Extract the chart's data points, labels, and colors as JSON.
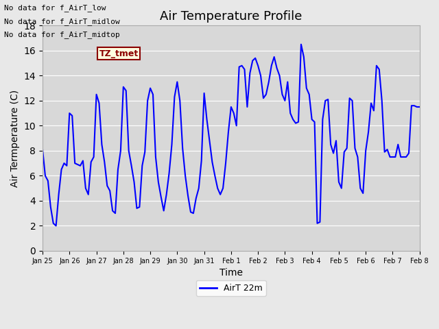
{
  "title": "Air Temperature Profile",
  "xlabel": "Time",
  "ylabel": "Air Termperature (C)",
  "ylim": [
    0,
    18
  ],
  "yticks": [
    0,
    2,
    4,
    6,
    8,
    10,
    12,
    14,
    16,
    18
  ],
  "line_color": "blue",
  "line_width": 1.5,
  "legend_label": "AirT 22m",
  "background_color": "#e8e8e8",
  "plot_bg_color": "#d8d8d8",
  "annotations": [
    "No data for f_AirT_low",
    "No data for f_AirT_midlow",
    "No data for f_AirT_midtop"
  ],
  "annotation_box_label": "TZ_tmet",
  "xtick_labels": [
    "Jan 25",
    "Jan 26",
    "Jan 27",
    "Jan 28",
    "Jan 29",
    "Jan 30",
    "Jan 31",
    "Feb 1",
    "Feb 2",
    "Feb 3",
    "Feb 4",
    "Feb 5",
    "Feb 6",
    "Feb 7",
    "Feb 8"
  ],
  "time_values": [
    0,
    0.1,
    0.2,
    0.3,
    0.4,
    0.5,
    0.6,
    0.7,
    0.8,
    0.9,
    1.0,
    1.1,
    1.2,
    1.3,
    1.4,
    1.5,
    1.6,
    1.7,
    1.8,
    1.9,
    2.0,
    2.1,
    2.2,
    2.3,
    2.4,
    2.5,
    2.6,
    2.7,
    2.8,
    2.9,
    3.0,
    3.1,
    3.2,
    3.3,
    3.4,
    3.5,
    3.6,
    3.7,
    3.8,
    3.9,
    4.0,
    4.1,
    4.2,
    4.3,
    4.4,
    4.5,
    4.6,
    4.7,
    4.8,
    4.9,
    5.0,
    5.1,
    5.2,
    5.3,
    5.4,
    5.5,
    5.6,
    5.7,
    5.8,
    5.9,
    6.0,
    6.1,
    6.2,
    6.3,
    6.4,
    6.5,
    6.6,
    6.7,
    6.8,
    6.9,
    7.0,
    7.1,
    7.2,
    7.3,
    7.4,
    7.5,
    7.6,
    7.7,
    7.8,
    7.9,
    8.0,
    8.1,
    8.2,
    8.3,
    8.4,
    8.5,
    8.6,
    8.7,
    8.8,
    8.9,
    9.0,
    9.1,
    9.2,
    9.3,
    9.4,
    9.5,
    9.6,
    9.7,
    9.8,
    9.9,
    10.0,
    10.1,
    10.2,
    10.3,
    10.4,
    10.5,
    10.6,
    10.7,
    10.8,
    10.9,
    11.0,
    11.1,
    11.2,
    11.3,
    11.4,
    11.5,
    11.6,
    11.7,
    11.8,
    11.9,
    12.0,
    12.1,
    12.2,
    12.3,
    12.4,
    12.5,
    12.6,
    12.7,
    12.8,
    12.9,
    13.0,
    13.1,
    13.2,
    13.3,
    13.4,
    13.5,
    13.6,
    13.7,
    13.8,
    13.9,
    14.0
  ],
  "temp_values": [
    8.1,
    6.0,
    5.6,
    3.5,
    2.2,
    2.0,
    4.5,
    6.5,
    7.0,
    6.8,
    11.0,
    10.8,
    7.0,
    6.9,
    6.8,
    7.2,
    5.0,
    4.5,
    7.1,
    7.5,
    12.5,
    11.8,
    8.5,
    7.1,
    5.2,
    4.8,
    3.2,
    3.0,
    6.5,
    8.0,
    13.1,
    12.8,
    8.0,
    6.8,
    5.5,
    3.4,
    3.5,
    6.8,
    7.9,
    12.0,
    13.0,
    12.5,
    7.5,
    5.5,
    4.3,
    3.2,
    4.5,
    6.2,
    8.5,
    12.3,
    13.5,
    12.0,
    8.2,
    6.0,
    4.4,
    3.1,
    3.0,
    4.2,
    5.0,
    7.2,
    12.6,
    10.5,
    8.8,
    7.1,
    6.0,
    5.0,
    4.5,
    5.0,
    7.0,
    9.5,
    11.5,
    11.0,
    10.0,
    14.7,
    14.8,
    14.5,
    11.5,
    14.2,
    15.2,
    15.4,
    14.8,
    14.0,
    12.2,
    12.5,
    13.5,
    14.8,
    15.5,
    14.6,
    14.0,
    12.5,
    12.0,
    13.5,
    11.0,
    10.5,
    10.2,
    10.3,
    16.5,
    15.5,
    13.0,
    12.5,
    10.5,
    10.3,
    2.2,
    2.3,
    10.5,
    12.0,
    12.1,
    8.5,
    7.8,
    8.8,
    5.5,
    5.0,
    7.9,
    8.2,
    12.2,
    12.0,
    8.2,
    7.5,
    5.0,
    4.6,
    8.0,
    9.5,
    11.8,
    11.2,
    14.8,
    14.5,
    12.0,
    7.9,
    8.1,
    7.5,
    7.5,
    7.5,
    8.5,
    7.5,
    7.5,
    7.5,
    7.8,
    11.6,
    11.6,
    11.5,
    11.5
  ]
}
